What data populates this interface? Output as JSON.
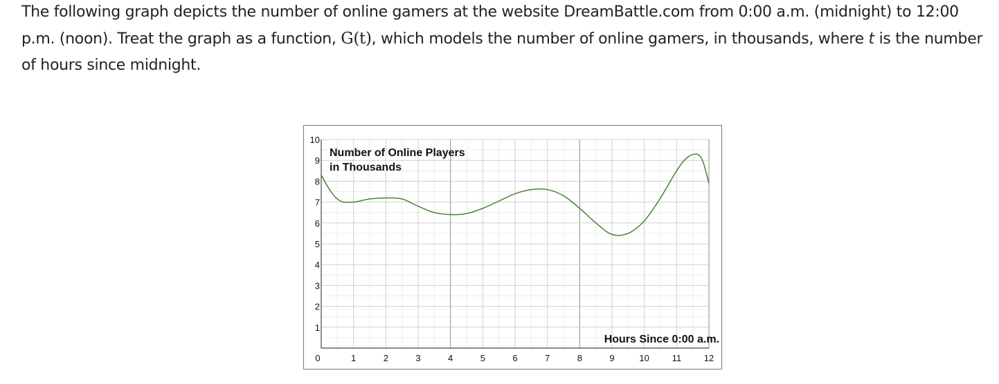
{
  "problem": {
    "text_part1": "The following graph depicts the number of online gamers at the website DreamBattle.com from 0:00 a.m. (midnight) to 12:00 p.m. (noon). Treat the graph as a function, ",
    "function_name": "G(t)",
    "text_part2": ", which models the number of online gamers, in thousands, where ",
    "variable": "t",
    "text_part3": " is the number of hours since midnight."
  },
  "chart_data": {
    "type": "line",
    "title": "",
    "ylabel": "Number of Online Players in Thousands",
    "ylabel_lines": [
      "Number of Online Players",
      "in Thousands"
    ],
    "xlabel": "Hours Since 0:00 a.m.",
    "xlim": [
      0,
      12
    ],
    "ylim": [
      0,
      10
    ],
    "x_ticks": [
      "0",
      "1",
      "2",
      "3",
      "4",
      "5",
      "6",
      "7",
      "8",
      "9",
      "10",
      "11",
      "12"
    ],
    "y_ticks": [
      "1",
      "2",
      "3",
      "4",
      "5",
      "6",
      "7",
      "8",
      "9",
      "10"
    ],
    "grid": true,
    "minor_grid_step": 0.5,
    "line_color": "#3a7d1e",
    "series": [
      {
        "x": [
          0,
          0.3,
          0.6,
          1,
          1.5,
          2,
          2.5,
          3,
          3.5,
          4,
          4.5,
          5,
          5.5,
          6,
          6.5,
          7,
          7.5,
          8,
          8.5,
          9,
          9.5,
          10,
          10.5,
          11,
          11.3,
          11.6,
          11.8,
          12
        ],
        "y": [
          8.3,
          7.5,
          7.05,
          7.0,
          7.15,
          7.2,
          7.15,
          6.8,
          6.5,
          6.4,
          6.45,
          6.7,
          7.05,
          7.4,
          7.6,
          7.6,
          7.3,
          6.7,
          6.0,
          5.45,
          5.5,
          6.1,
          7.2,
          8.5,
          9.1,
          9.3,
          9.0,
          7.9
        ]
      }
    ]
  }
}
